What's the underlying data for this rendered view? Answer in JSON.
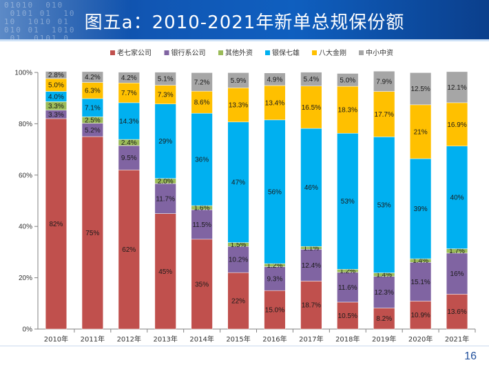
{
  "slide": {
    "title": "图五a：2010-2021年新单总规保份额",
    "page_number": "16",
    "header_bits": "01010  010\n 0101 01  10\n10  1010 01\n010 01  1010\n 01  0101 0"
  },
  "chart_data": {
    "type": "bar",
    "stacked": true,
    "normalized": true,
    "categories": [
      "2010年",
      "2011年",
      "2012年",
      "2013年",
      "2014年",
      "2015年",
      "2016年",
      "2017年",
      "2018年",
      "2019年",
      "2020年",
      "2021年"
    ],
    "ylim": [
      0,
      100
    ],
    "yticks": [
      "0%",
      "20%",
      "40%",
      "60%",
      "80%",
      "100%"
    ],
    "legend_position": "top",
    "grid": false,
    "series": [
      {
        "name": "老七家公司",
        "color": "#c0504d",
        "values": [
          82,
          75,
          62,
          45,
          35,
          22,
          15.0,
          18.7,
          10.5,
          8.2,
          10.9,
          13.6
        ],
        "labels": [
          "82%",
          "75%",
          "62%",
          "45%",
          "35%",
          "22%",
          "15.0%",
          "18.7%",
          "10.5%",
          "8.2%",
          "10.9%",
          "13.6%"
        ]
      },
      {
        "name": "银行系公司",
        "color": "#8064a2",
        "values": [
          3.3,
          5.2,
          9.5,
          11.7,
          11.5,
          10.2,
          9.3,
          12.4,
          11.6,
          12.3,
          15.1,
          16
        ],
        "labels": [
          "3.3%",
          "5.2%",
          "9.5%",
          "11.7%",
          "11.5%",
          "10.2%",
          "9.3%",
          "12.4%",
          "11.6%",
          "12.3%",
          "15.1%",
          "16%"
        ]
      },
      {
        "name": "其他外资",
        "color": "#9bbb59",
        "values": [
          3.3,
          2.5,
          2.4,
          2.0,
          1.6,
          1.5,
          1.2,
          1.1,
          1.2,
          1.4,
          1.4,
          1.7
        ],
        "labels": [
          "3.3%",
          "2.5%",
          "2.4%",
          "2.0%",
          "1.6%",
          "1.5%",
          "1.2%",
          "1.1%",
          "1.2%",
          "1.4%",
          "1.4%",
          "1.7%"
        ]
      },
      {
        "name": "银保七雄",
        "color": "#00b0f0",
        "values": [
          4.0,
          7.1,
          14.3,
          29,
          36,
          47,
          56,
          46,
          53,
          53,
          39,
          40
        ],
        "labels": [
          "4.0%",
          "7.1%",
          "14.3%",
          "29%",
          "36%",
          "47%",
          "56%",
          "46%",
          "53%",
          "53%",
          "39%",
          "40%"
        ]
      },
      {
        "name": "八大金刚",
        "color": "#ffc000",
        "values": [
          5.0,
          6.3,
          7.7,
          7.3,
          8.6,
          13.3,
          13.4,
          16.5,
          18.3,
          17.7,
          21,
          16.9
        ],
        "labels": [
          "5.0%",
          "6.3%",
          "7.7%",
          "7.3%",
          "8.6%",
          "13.3%",
          "13.4%",
          "16.5%",
          "18.3%",
          "17.7%",
          "21%",
          "16.9%"
        ]
      },
      {
        "name": "中小中资",
        "color": "#a6a6a6",
        "values": [
          2.8,
          4.2,
          4.2,
          5.1,
          7.2,
          5.9,
          4.9,
          5.4,
          5.0,
          7.9,
          12.5,
          12.1
        ],
        "labels": [
          "2.8%",
          "4.2%",
          "4.2%",
          "5.1%",
          "7.2%",
          "5.9%",
          "4.9%",
          "5.4%",
          "5.0%",
          "7.9%",
          "12.5%",
          "12.1%"
        ]
      }
    ]
  }
}
